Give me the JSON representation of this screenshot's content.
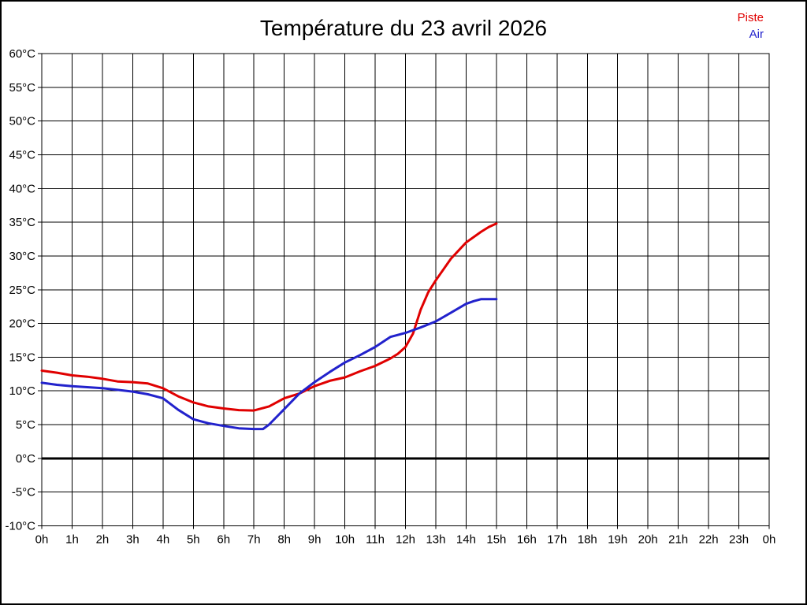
{
  "chart_data": {
    "type": "line",
    "title": "Température du 23 avril 2026",
    "grid": true,
    "legend_position": "top-right",
    "x_axis": {
      "label": "",
      "unit": "h",
      "min": 0,
      "max": 24,
      "tick_values": [
        0,
        1,
        2,
        3,
        4,
        5,
        6,
        7,
        8,
        9,
        10,
        11,
        12,
        13,
        14,
        15,
        16,
        17,
        18,
        19,
        20,
        21,
        22,
        23,
        24
      ],
      "tick_labels": [
        "0h",
        "1h",
        "2h",
        "3h",
        "4h",
        "5h",
        "6h",
        "7h",
        "8h",
        "9h",
        "10h",
        "11h",
        "12h",
        "13h",
        "14h",
        "15h",
        "16h",
        "17h",
        "18h",
        "19h",
        "20h",
        "21h",
        "22h",
        "23h",
        "0h"
      ]
    },
    "y_axis": {
      "label": "",
      "unit": "°C",
      "min": -10,
      "max": 60,
      "tick_values": [
        60,
        55,
        50,
        45,
        40,
        35,
        30,
        25,
        20,
        15,
        10,
        5,
        0,
        -5,
        -10
      ],
      "tick_labels": [
        "60°C",
        "55°C",
        "50°C",
        "45°C",
        "40°C",
        "35°C",
        "30°C",
        "25°C",
        "20°C",
        "15°C",
        "10°C",
        "5°C",
        "0°C",
        "-5°C",
        "-10°C"
      ]
    },
    "zero_line": {
      "value": 0,
      "color": "#000000",
      "width": 3
    },
    "series": [
      {
        "name": "Piste",
        "color": "#e00000",
        "points": [
          [
            0,
            13.0
          ],
          [
            0.5,
            12.7
          ],
          [
            1,
            12.3
          ],
          [
            1.5,
            12.1
          ],
          [
            2,
            11.8
          ],
          [
            2.5,
            11.4
          ],
          [
            3,
            11.3
          ],
          [
            3.5,
            11.1
          ],
          [
            4,
            10.4
          ],
          [
            4.5,
            9.2
          ],
          [
            5,
            8.3
          ],
          [
            5.5,
            7.7
          ],
          [
            6,
            7.4
          ],
          [
            6.5,
            7.15
          ],
          [
            7,
            7.1
          ],
          [
            7.5,
            7.7
          ],
          [
            8,
            8.9
          ],
          [
            8.5,
            9.6
          ],
          [
            9,
            10.7
          ],
          [
            9.5,
            11.5
          ],
          [
            10,
            12.0
          ],
          [
            10.5,
            12.9
          ],
          [
            11,
            13.7
          ],
          [
            11.5,
            14.8
          ],
          [
            11.75,
            15.5
          ],
          [
            12,
            16.5
          ],
          [
            12.25,
            18.5
          ],
          [
            12.5,
            22.0
          ],
          [
            12.75,
            24.6
          ],
          [
            13,
            26.4
          ],
          [
            13.5,
            29.6
          ],
          [
            14,
            32.0
          ],
          [
            14.5,
            33.6
          ],
          [
            14.75,
            34.3
          ],
          [
            15,
            34.8
          ]
        ]
      },
      {
        "name": "Air",
        "color": "#2222cc",
        "points": [
          [
            0,
            11.2
          ],
          [
            0.5,
            10.9
          ],
          [
            1,
            10.7
          ],
          [
            1.5,
            10.55
          ],
          [
            2,
            10.4
          ],
          [
            2.5,
            10.15
          ],
          [
            3,
            9.9
          ],
          [
            3.5,
            9.5
          ],
          [
            4,
            8.9
          ],
          [
            4.5,
            7.2
          ],
          [
            5,
            5.8
          ],
          [
            5.5,
            5.2
          ],
          [
            6,
            4.8
          ],
          [
            6.5,
            4.45
          ],
          [
            7,
            4.35
          ],
          [
            7.3,
            4.35
          ],
          [
            7.5,
            5.0
          ],
          [
            8,
            7.3
          ],
          [
            8.5,
            9.6
          ],
          [
            9,
            11.3
          ],
          [
            9.5,
            12.8
          ],
          [
            10,
            14.2
          ],
          [
            10.5,
            15.3
          ],
          [
            11,
            16.5
          ],
          [
            11.5,
            18.0
          ],
          [
            12,
            18.6
          ],
          [
            12.5,
            19.4
          ],
          [
            13,
            20.3
          ],
          [
            13.5,
            21.6
          ],
          [
            14,
            22.9
          ],
          [
            14.25,
            23.3
          ],
          [
            14.5,
            23.6
          ],
          [
            15,
            23.6
          ]
        ]
      }
    ]
  }
}
